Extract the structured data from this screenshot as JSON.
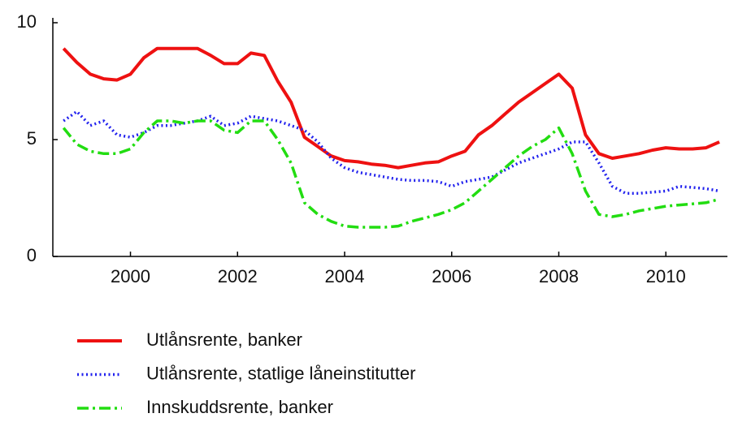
{
  "chart_data": {
    "type": "line",
    "x": [
      1998.75,
      1999,
      1999.25,
      1999.5,
      1999.75,
      2000,
      2000.25,
      2000.5,
      2000.75,
      2001,
      2001.25,
      2001.5,
      2001.75,
      2002,
      2002.25,
      2002.5,
      2002.75,
      2003,
      2003.25,
      2003.5,
      2003.75,
      2004,
      2004.25,
      2004.5,
      2004.75,
      2005,
      2005.25,
      2005.5,
      2005.75,
      2006,
      2006.25,
      2006.5,
      2006.75,
      2007,
      2007.25,
      2007.5,
      2007.75,
      2008,
      2008.25,
      2008.5,
      2008.75,
      2009,
      2009.25,
      2009.5,
      2009.75,
      2010,
      2010.25,
      2010.5,
      2010.75,
      2011
    ],
    "series": [
      {
        "name": "Utlånsrente, banker",
        "color": "#ee1111",
        "linestyle": "solid",
        "values": [
          8.9,
          8.3,
          7.8,
          7.6,
          7.55,
          7.8,
          8.5,
          8.9,
          8.9,
          8.9,
          8.9,
          8.6,
          8.25,
          8.25,
          8.7,
          8.6,
          7.5,
          6.6,
          5.1,
          4.7,
          4.3,
          4.1,
          4.05,
          3.95,
          3.9,
          3.8,
          3.9,
          4.0,
          4.05,
          4.3,
          4.5,
          5.2,
          5.6,
          6.1,
          6.6,
          7.0,
          7.4,
          7.8,
          7.2,
          5.2,
          4.4,
          4.2,
          4.3,
          4.4,
          4.55,
          4.65,
          4.6,
          4.6,
          4.65,
          4.9
        ]
      },
      {
        "name": "Utlånsrente, statlige låneinstitutter",
        "color": "#2222ee",
        "linestyle": "dotted",
        "values": [
          5.8,
          6.2,
          5.6,
          5.8,
          5.2,
          5.1,
          5.3,
          5.6,
          5.6,
          5.7,
          5.8,
          6.0,
          5.6,
          5.7,
          6.0,
          5.9,
          5.8,
          5.6,
          5.4,
          4.9,
          4.2,
          3.8,
          3.6,
          3.5,
          3.4,
          3.3,
          3.25,
          3.25,
          3.2,
          3.0,
          3.2,
          3.3,
          3.4,
          3.7,
          4.0,
          4.2,
          4.4,
          4.6,
          4.9,
          4.9,
          4.0,
          3.0,
          2.7,
          2.7,
          2.75,
          2.8,
          3.0,
          2.95,
          2.9,
          2.8
        ]
      },
      {
        "name": "Innskuddsrente, banker",
        "color": "#22dd11",
        "linestyle": "dashdot",
        "values": [
          5.5,
          4.8,
          4.5,
          4.4,
          4.4,
          4.6,
          5.3,
          5.8,
          5.8,
          5.7,
          5.8,
          5.8,
          5.4,
          5.3,
          5.8,
          5.8,
          5.0,
          4.0,
          2.3,
          1.8,
          1.5,
          1.3,
          1.25,
          1.25,
          1.25,
          1.3,
          1.5,
          1.65,
          1.8,
          2.0,
          2.3,
          2.8,
          3.3,
          3.8,
          4.3,
          4.7,
          5.0,
          5.5,
          4.4,
          2.8,
          1.8,
          1.7,
          1.8,
          1.95,
          2.05,
          2.15,
          2.2,
          2.25,
          2.3,
          2.45
        ]
      }
    ],
    "xlim": [
      1998.55,
      2011.15
    ],
    "xticks": [
      2000,
      2002,
      2004,
      2006,
      2008,
      2010
    ],
    "ylim": [
      0,
      10
    ],
    "yticks": [
      0,
      5,
      10
    ]
  }
}
